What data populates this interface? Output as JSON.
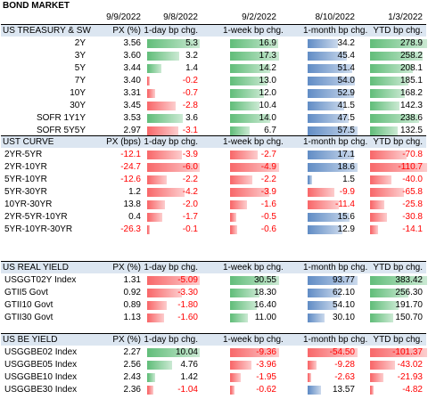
{
  "title": "BOND MARKET",
  "dates": [
    "9/9/2022",
    "9/8/2022",
    "9/2/2022",
    "8/10/2022",
    "1/3/2022"
  ],
  "colors": {
    "header_bg": "#dce6f1",
    "pos_bar": "#63be7b",
    "neg_bar": "#f8696b",
    "blue_bar": "#638ec6",
    "neg_text": "#ff0000"
  },
  "sections": [
    {
      "id": "ust",
      "header": [
        "US TREASURY & SW",
        "PX (%)",
        "1-day bp chg.",
        "1-week bp chg.",
        "1-month bp chg.",
        "YTD bp chg."
      ],
      "label_align": "right",
      "rows": [
        {
          "label": "2Y",
          "px": "3.56",
          "d1": "5.3",
          "w1": "16.9",
          "m1": "34.2",
          "ytd": "278.9"
        },
        {
          "label": "3Y",
          "px": "3.60",
          "d1": "3.2",
          "w1": "17.3",
          "m1": "45.4",
          "ytd": "258.2"
        },
        {
          "label": "5Y",
          "px": "3.44",
          "d1": "1.4",
          "w1": "14.2",
          "m1": "51.4",
          "ytd": "208.1"
        },
        {
          "label": "7Y",
          "px": "3.40",
          "d1": "-0.2",
          "w1": "13.0",
          "m1": "54.0",
          "ytd": "185.1"
        },
        {
          "label": "10Y",
          "px": "3.31",
          "d1": "-0.7",
          "w1": "12.0",
          "m1": "52.9",
          "ytd": "168.2"
        },
        {
          "label": "30Y",
          "px": "3.45",
          "d1": "-2.8",
          "w1": "10.4",
          "m1": "41.5",
          "ytd": "142.3"
        },
        {
          "label": "SOFR 1Y1Y",
          "px": "3.53",
          "d1": "3.6",
          "w1": "14.0",
          "m1": "47.5",
          "ytd": "238.6"
        },
        {
          "label": "SOFR 5Y5Y",
          "px": "2.97",
          "d1": "-3.1",
          "w1": "6.7",
          "m1": "57.5",
          "ytd": "132.5"
        }
      ]
    },
    {
      "id": "curve",
      "header": [
        "UST CURVE",
        "PX (bps)",
        "1-day bp chg.",
        "1-week bp chg.",
        "1-month bp chg.",
        "YTD bp chg."
      ],
      "label_align": "left",
      "rows": [
        {
          "label": "2YR-5YR",
          "px": "-12.1",
          "d1": "-3.9",
          "w1": "-2.7",
          "m1": "17.1",
          "ytd": "-70.8"
        },
        {
          "label": "2YR-10YR",
          "px": "-24.7",
          "d1": "-6.0",
          "w1": "-4.9",
          "m1": "18.6",
          "ytd": "-110.7"
        },
        {
          "label": "5YR-10YR",
          "px": "-12.6",
          "d1": "-2.2",
          "w1": "-2.2",
          "m1": "1.5",
          "ytd": "-40.0"
        },
        {
          "label": "5YR-30YR",
          "px": "1.2",
          "d1": "-4.2",
          "w1": "-3.9",
          "m1": "-9.9",
          "ytd": "-65.8"
        },
        {
          "label": "10YR-30YR",
          "px": "13.8",
          "d1": "-2.0",
          "w1": "-1.6",
          "m1": "-11.4",
          "ytd": "-25.8"
        },
        {
          "label": "2YR-5YR-10YR",
          "px": "0.4",
          "d1": "-1.7",
          "w1": "-0.5",
          "m1": "15.6",
          "ytd": "-30.8"
        },
        {
          "label": "5YR-10YR-30YR",
          "px": "-26.3",
          "d1": "-0.1",
          "w1": "-0.6",
          "m1": "12.9",
          "ytd": "-14.1"
        }
      ]
    },
    {
      "id": "real",
      "header": [
        "US REAL YIELD",
        "PX (%)",
        "1-day bp chg.",
        "1-week bp chg.",
        "1-month bp chg.",
        "YTD bp chg."
      ],
      "label_align": "left",
      "rows": [
        {
          "label": "USGGT02Y Index",
          "px": "1.31",
          "d1": "-5.09",
          "w1": "30.55",
          "m1": "93.77",
          "ytd": "383.42"
        },
        {
          "label": "GTII5 Govt",
          "px": "0.92",
          "d1": "-3.30",
          "w1": "18.30",
          "m1": "62.10",
          "ytd": "256.30"
        },
        {
          "label": "GTII10 Govt",
          "px": "0.89",
          "d1": "-1.80",
          "w1": "16.40",
          "m1": "54.10",
          "ytd": "191.70"
        },
        {
          "label": "GTII30 Govt",
          "px": "1.13",
          "d1": "-1.60",
          "w1": "11.00",
          "m1": "30.10",
          "ytd": "150.70"
        }
      ]
    },
    {
      "id": "be",
      "header": [
        "US BE YIELD",
        "PX (%)",
        "1-day bp chg.",
        "1-week bp chg.",
        "1-month bp chg.",
        "YTD bp chg."
      ],
      "label_align": "left",
      "rows": [
        {
          "label": "USGGBE02 Index",
          "px": "2.27",
          "d1": "10.04",
          "w1": "-9.36",
          "m1": "-54.50",
          "ytd": "-101.37"
        },
        {
          "label": "USGGBE05 Index",
          "px": "2.56",
          "d1": "4.76",
          "w1": "-3.96",
          "m1": "-9.28",
          "ytd": "-43.02"
        },
        {
          "label": "USGGBE10 Index",
          "px": "2.43",
          "d1": "1.42",
          "w1": "-1.95",
          "m1": "-2.63",
          "ytd": "-21.93"
        },
        {
          "label": "USGGBE30 Index",
          "px": "2.36",
          "d1": "-1.04",
          "w1": "-0.62",
          "m1": "13.57",
          "ytd": "-4.82"
        }
      ]
    }
  ]
}
